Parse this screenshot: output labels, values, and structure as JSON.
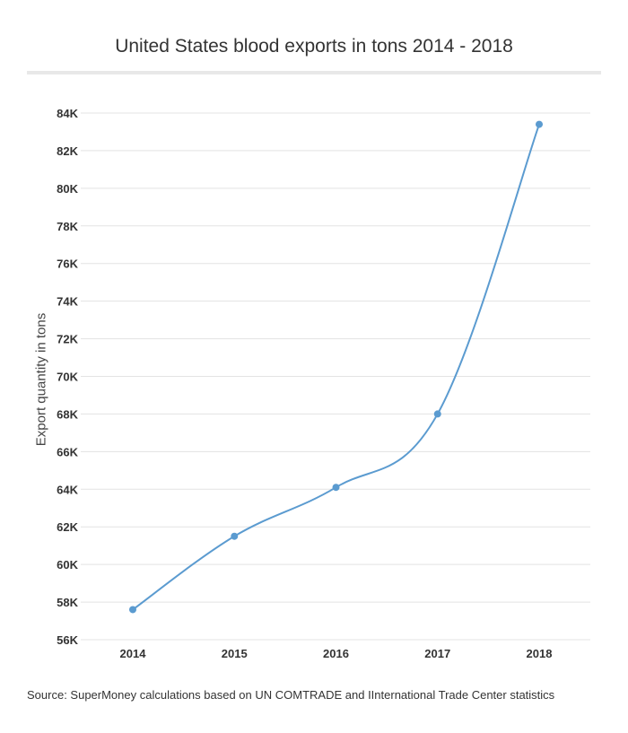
{
  "title": "United States blood exports in tons 2014 - 2018",
  "source": "Source:  SuperMoney calculations based on UN COMTRADE and IInternational Trade Center statistics",
  "colors": {
    "line": "#5b9bd0",
    "grid": "#e3e3e3",
    "text": "#333333"
  },
  "chart_data": {
    "type": "line",
    "title": "United States blood exports in tons 2014 - 2018",
    "xlabel": "",
    "ylabel": "Export quantity in tons",
    "categories": [
      "2014",
      "2015",
      "2016",
      "2017",
      "2018"
    ],
    "series": [
      {
        "values": [
          57600,
          61500,
          64100,
          68000,
          83400
        ]
      }
    ],
    "ylim": [
      56000,
      84000
    ],
    "yticks": [
      "56K",
      "58K",
      "60K",
      "62K",
      "64K",
      "66K",
      "68K",
      "70K",
      "72K",
      "74K",
      "76K",
      "78K",
      "80K",
      "82K",
      "84K"
    ],
    "grid": true,
    "legend": "none"
  }
}
